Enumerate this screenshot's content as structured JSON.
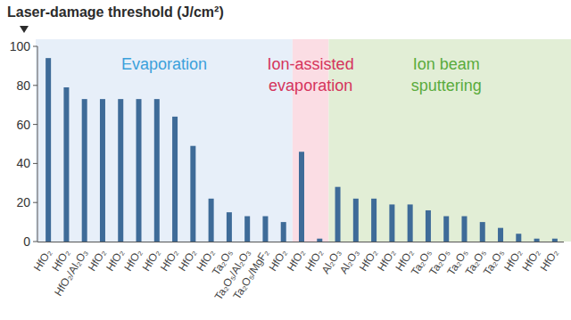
{
  "chart_data": {
    "type": "bar",
    "title": "Laser-damage threshold (J/cm²)",
    "categories": [
      "HfO₂",
      "HfO₂",
      "HfO₂/Al₂O₃",
      "HfO₂",
      "HfO₂",
      "HfO₂",
      "HfO₂",
      "HfO₂",
      "HfO₂",
      "HfO₂",
      "Ta₂O₅",
      "Ta₂O₅/Al₂O₃",
      "Ta₂O₅/MgF₂",
      "HfO₂",
      "HfO₂",
      "HfO₂",
      "Al₂O₃",
      "Al₂O₃",
      "HfO₂",
      "HfO₂",
      "HfO₂",
      "Ta₂O₅",
      "Ta₂O₅",
      "Ta₂O₅",
      "Ta₂O₅",
      "Ta₂O₅",
      "HfO₂",
      "HfO₂",
      "HfO₂"
    ],
    "values": [
      94,
      79,
      73,
      73,
      73,
      73,
      73,
      64,
      49,
      22,
      15,
      13,
      13,
      10,
      46,
      1.5,
      28,
      22,
      22,
      19,
      19,
      16,
      13,
      13,
      10,
      7,
      4,
      1.5,
      1.5
    ],
    "color": "#3e6b98",
    "ylim": [
      0,
      100
    ],
    "yticks": [
      0,
      20,
      40,
      60,
      80,
      100
    ],
    "grid": false,
    "annotations": [
      {
        "text": [
          "Evaporation"
        ],
        "from": 0,
        "to": 13,
        "color": "#e7eff9",
        "text_color": "#3ba1db"
      },
      {
        "text": [
          "Ion-assisted",
          "evaporation"
        ],
        "from": 14,
        "to": 15,
        "color": "#fbdde4",
        "text_color": "#d5345c"
      },
      {
        "text": [
          "Ion beam",
          "sputtering"
        ],
        "from": 16,
        "to": 28,
        "color": "#e2eed6",
        "text_color": "#5aab3c"
      }
    ]
  }
}
